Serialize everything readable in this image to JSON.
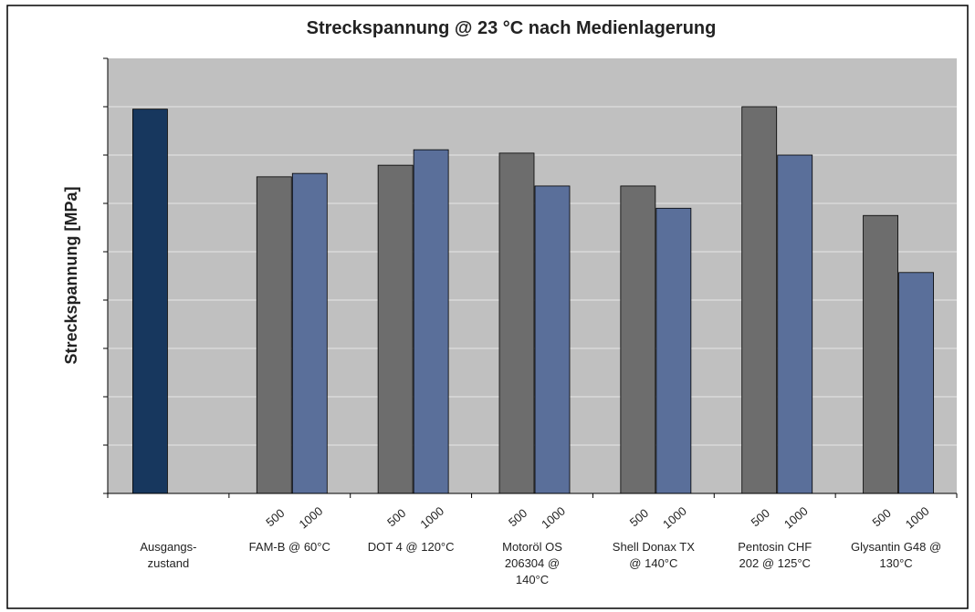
{
  "chart_data": {
    "type": "bar",
    "title": "Streckspannung @ 23 °C nach Medienlagerung",
    "y_label": "Streckspannung [MPa]",
    "categories": [
      "Ausgangs-\nzustand",
      "FAM-B @ 60°C",
      "DOT 4 @ 120°C",
      "Motoröl OS\n206304 @\n140°C",
      "Shell Donax TX\n@ 140°C",
      "Pentosin CHF\n202 @ 125°C",
      "Glysantin G48 @\n130°C"
    ],
    "reference": {
      "color": "#17375e",
      "value": 7.95
    },
    "series": [
      {
        "name": "500",
        "color": "#6d6d6d",
        "values": [
          null,
          6.55,
          6.79,
          7.04,
          6.36,
          8.0,
          5.75
        ]
      },
      {
        "name": "1000",
        "color": "#5a6f9a",
        "values": [
          null,
          6.62,
          7.11,
          6.36,
          5.9,
          7.0,
          4.57
        ]
      }
    ],
    "ylim": [
      0,
      9
    ],
    "yticks": [
      0,
      1,
      2,
      3,
      4,
      5,
      6,
      7,
      8,
      9
    ],
    "grid": true
  }
}
